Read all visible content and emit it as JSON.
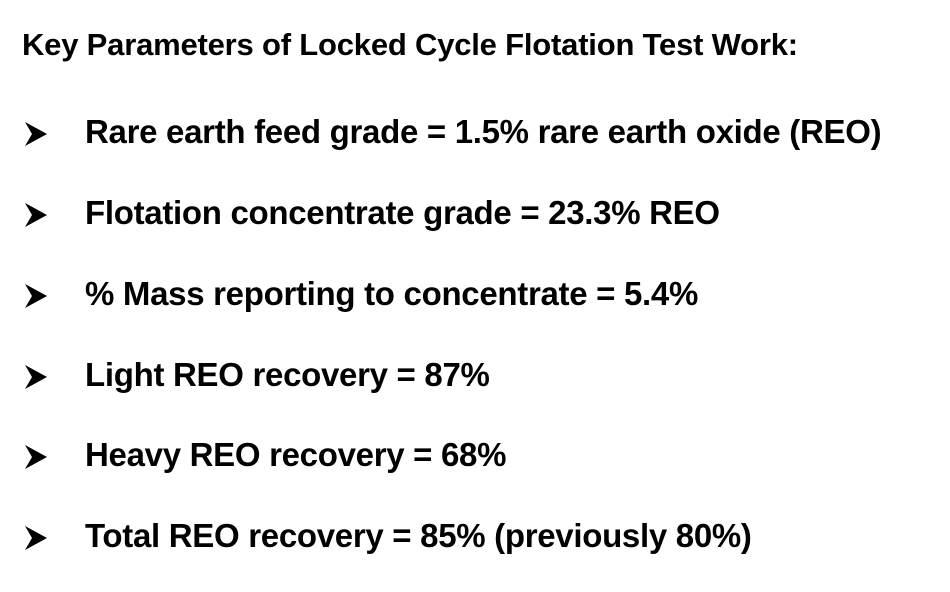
{
  "title": "Key Parameters of Locked Cycle Flotation Test Work:",
  "bullet_icon": "arrowhead-bullet-icon",
  "items": [
    {
      "text": "Rare earth feed grade = 1.5% rare earth oxide (REO)"
    },
    {
      "text": "Flotation concentrate grade = 23.3% REO"
    },
    {
      "text": "% Mass reporting to concentrate = 5.4%"
    },
    {
      "text": "Light REO recovery = 87%"
    },
    {
      "text": "Heavy REO recovery = 68%"
    },
    {
      "text": "Total REO recovery = 85% (previously 80%)"
    }
  ]
}
